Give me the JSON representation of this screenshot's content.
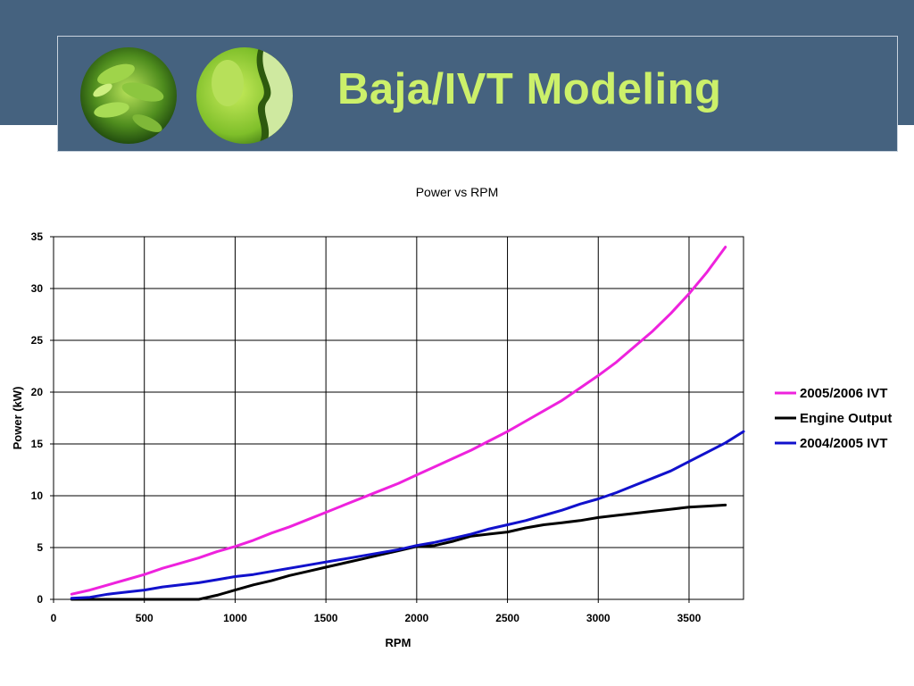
{
  "slide": {
    "title": "Baja/IVT Modeling"
  },
  "colors": {
    "header_background": "#45627f",
    "title_color": "#ccf06a",
    "series_2005_2006": "#ee22dd",
    "series_engine": "#000000",
    "series_2004_2005": "#1111cc"
  },
  "chart_data": {
    "type": "line",
    "title": "Power vs RPM",
    "xlabel": "RPM",
    "ylabel": "Power (kW)",
    "xlim": [
      0,
      3800
    ],
    "ylim": [
      0,
      35
    ],
    "x_ticks": [
      0,
      500,
      1000,
      1500,
      2000,
      2500,
      3000,
      3500
    ],
    "y_ticks": [
      0,
      5,
      10,
      15,
      20,
      25,
      30,
      35
    ],
    "grid": true,
    "legend_position": "right",
    "series": [
      {
        "name": "2005/2006 IVT",
        "color": "#ee22dd",
        "x": [
          100,
          200,
          300,
          400,
          500,
          600,
          700,
          800,
          900,
          1000,
          1100,
          1200,
          1300,
          1400,
          1500,
          1600,
          1700,
          1800,
          1900,
          2000,
          2100,
          2200,
          2300,
          2400,
          2500,
          2600,
          2700,
          2800,
          2900,
          3000,
          3100,
          3200,
          3300,
          3400,
          3500,
          3600,
          3700
        ],
        "values": [
          0.5,
          0.9,
          1.4,
          1.9,
          2.4,
          3.0,
          3.5,
          4.0,
          4.6,
          5.1,
          5.7,
          6.4,
          7.0,
          7.7,
          8.4,
          9.1,
          9.8,
          10.5,
          11.2,
          12.0,
          12.8,
          13.6,
          14.4,
          15.3,
          16.2,
          17.2,
          18.2,
          19.2,
          20.4,
          21.6,
          22.9,
          24.4,
          25.9,
          27.6,
          29.5,
          31.6,
          34.0
        ]
      },
      {
        "name": "Engine Output",
        "color": "#000000",
        "x": [
          100,
          200,
          300,
          400,
          500,
          600,
          700,
          800,
          900,
          1000,
          1100,
          1200,
          1300,
          1400,
          1500,
          1600,
          1700,
          1800,
          1900,
          2000,
          2100,
          2200,
          2300,
          2400,
          2500,
          2600,
          2700,
          2800,
          2900,
          3000,
          3100,
          3200,
          3300,
          3400,
          3500,
          3600,
          3700
        ],
        "values": [
          0,
          0,
          0,
          0,
          0,
          0,
          0,
          0,
          0.4,
          0.9,
          1.4,
          1.8,
          2.3,
          2.7,
          3.1,
          3.5,
          3.9,
          4.3,
          4.7,
          5.1,
          5.2,
          5.6,
          6.1,
          6.3,
          6.5,
          6.9,
          7.2,
          7.4,
          7.6,
          7.9,
          8.1,
          8.3,
          8.5,
          8.7,
          8.9,
          9.0,
          9.1
        ]
      },
      {
        "name": "2004/2005 IVT",
        "color": "#1111cc",
        "x": [
          100,
          200,
          300,
          400,
          500,
          600,
          700,
          800,
          900,
          1000,
          1100,
          1200,
          1300,
          1400,
          1500,
          1600,
          1700,
          1800,
          1900,
          2000,
          2100,
          2200,
          2300,
          2400,
          2500,
          2600,
          2700,
          2800,
          2900,
          3000,
          3100,
          3200,
          3300,
          3400,
          3500,
          3600,
          3700,
          3800
        ],
        "values": [
          0.1,
          0.2,
          0.5,
          0.7,
          0.9,
          1.2,
          1.4,
          1.6,
          1.9,
          2.2,
          2.4,
          2.7,
          3.0,
          3.3,
          3.6,
          3.9,
          4.2,
          4.5,
          4.8,
          5.2,
          5.5,
          5.9,
          6.3,
          6.8,
          7.2,
          7.6,
          8.1,
          8.6,
          9.2,
          9.7,
          10.3,
          11.0,
          11.7,
          12.4,
          13.3,
          14.2,
          15.1,
          16.2
        ]
      }
    ]
  }
}
